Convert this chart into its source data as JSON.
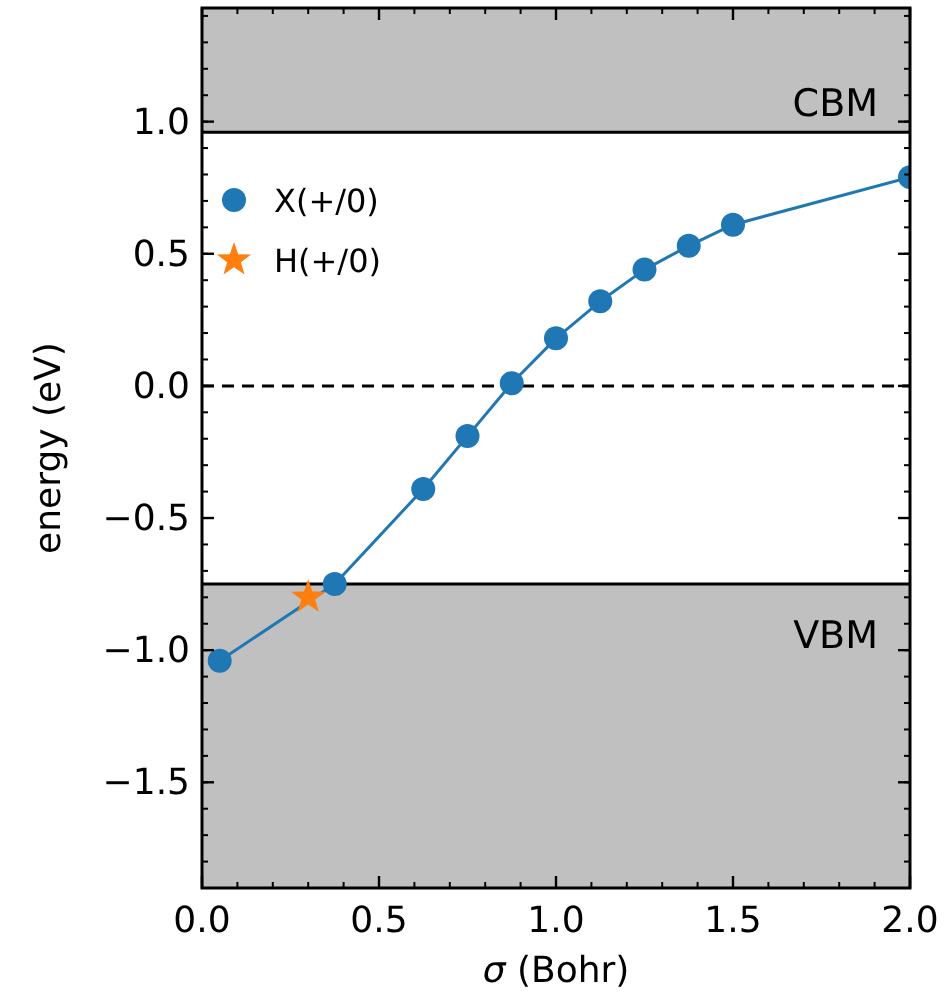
{
  "chart_data": {
    "type": "line",
    "xlabel": "σ (Bohr)",
    "ylabel": "energy (eV)",
    "xlim": [
      0,
      2
    ],
    "xticks": [
      {
        "value": 0,
        "label": "0.0"
      },
      {
        "value": 0.5,
        "label": "0.5"
      },
      {
        "value": 1,
        "label": "1.0"
      },
      {
        "value": 1.5,
        "label": "1.5"
      },
      {
        "value": 2,
        "label": "2.0"
      }
    ],
    "ylim": [
      -1.9,
      1.43
    ],
    "yticks": [
      {
        "value": -1.5,
        "label": "−1.5"
      },
      {
        "value": -1,
        "label": "−1.0"
      },
      {
        "value": -0.5,
        "label": "−0.5"
      },
      {
        "value": 0,
        "label": "0.0"
      },
      {
        "value": 0.5,
        "label": "0.5"
      },
      {
        "value": 1,
        "label": "1.0"
      }
    ],
    "series": [
      {
        "name": "X(+/0)",
        "color": "#1f77b4",
        "marker": "circle",
        "x": [
          0.05,
          0.375,
          0.625,
          0.75,
          0.875,
          1.0,
          1.125,
          1.25,
          1.375,
          1.5,
          2.0
        ],
        "values": [
          -1.04,
          -0.75,
          -0.39,
          -0.19,
          0.01,
          0.18,
          0.32,
          0.44,
          0.53,
          0.61,
          0.79
        ]
      },
      {
        "name": "H(+/0)",
        "color": "#ff7f0e",
        "type": "scatter",
        "marker": "star",
        "x": [
          0.3
        ],
        "values": [
          -0.8
        ]
      }
    ],
    "bands": [
      {
        "axis": "y",
        "from": 0.96,
        "to": 1.43,
        "label": "CBM",
        "color": "#c0c0c0"
      },
      {
        "axis": "y",
        "from": -1.9,
        "to": -0.75,
        "label": "VBM",
        "color": "#c0c0c0"
      }
    ],
    "ref_lines": [
      {
        "axis": "y",
        "value": 0,
        "line_style": "dashed",
        "color": "#000000"
      },
      {
        "axis": "y",
        "value": 0.96,
        "line_style": "solid",
        "color": "#000000"
      },
      {
        "axis": "y",
        "value": -0.75,
        "line_style": "solid",
        "color": "#000000"
      }
    ],
    "legend": "top left",
    "grid": false
  }
}
